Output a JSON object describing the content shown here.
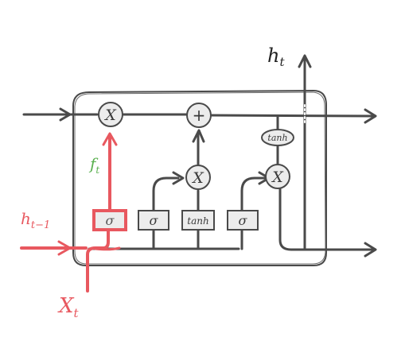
{
  "colors": {
    "ink": "#4a4a4a",
    "highlight": "#e8585f",
    "gate_text": "#5ab04f",
    "cell_fill": "#f3f3f3",
    "box_fill": "#ececec"
  },
  "labels": {
    "h_out": {
      "base": "h",
      "sub": "t"
    },
    "h_prev": {
      "base": "h",
      "sub": "t−1"
    },
    "x_in": {
      "base": "X",
      "sub": "t"
    },
    "f_gate": {
      "base": "f",
      "sub": "t"
    }
  },
  "ops": {
    "multiply": "X",
    "add": "+",
    "tanh": "tanh"
  },
  "gates": {
    "forget": "σ",
    "input": "σ",
    "candidate": "tanh",
    "output": "σ"
  }
}
